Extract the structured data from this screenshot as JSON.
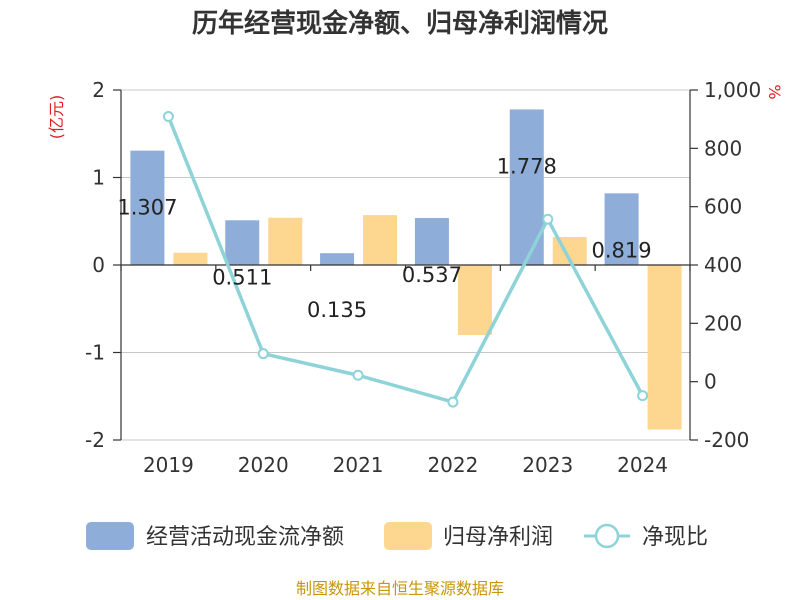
{
  "title": "历年经营现金净额、归母净利润情况",
  "source": "制图数据来自恒生聚源数据库",
  "left_axis_unit": "(亿元)",
  "right_axis_unit": "%",
  "colors": {
    "cash": "#8eadd9",
    "profit": "#fdd690",
    "ratio": "#8dd3d8",
    "grid": "#c8c8c8",
    "axis": "#333333"
  },
  "chart_data": {
    "type": "bar",
    "categories": [
      "2019",
      "2020",
      "2021",
      "2022",
      "2023",
      "2024"
    ],
    "series": [
      {
        "name": "经营活动现金流净额",
        "axis": "left",
        "kind": "bar",
        "values": [
          1.307,
          0.511,
          0.135,
          0.537,
          1.778,
          0.819
        ]
      },
      {
        "name": "归母净利润",
        "axis": "left",
        "kind": "bar",
        "values": [
          0.14,
          0.54,
          0.57,
          -0.8,
          0.32,
          -1.88
        ]
      },
      {
        "name": "净现比",
        "axis": "right",
        "kind": "line",
        "values": [
          909,
          96,
          22,
          -70,
          557,
          -48
        ]
      }
    ],
    "data_labels": [
      "1.307",
      "0.511",
      "0.135",
      "0.537",
      "1.778",
      "0.819"
    ],
    "left_axis": {
      "ylim": [
        -2,
        2
      ],
      "ticks": [
        "-2",
        "-1",
        "0",
        "1",
        "2"
      ]
    },
    "right_axis": {
      "ylim": [
        -200,
        1000
      ],
      "ticks": [
        "-200",
        "0",
        "200",
        "400",
        "600",
        "800",
        "1,000"
      ]
    },
    "grid": true,
    "legend_position": "bottom"
  }
}
